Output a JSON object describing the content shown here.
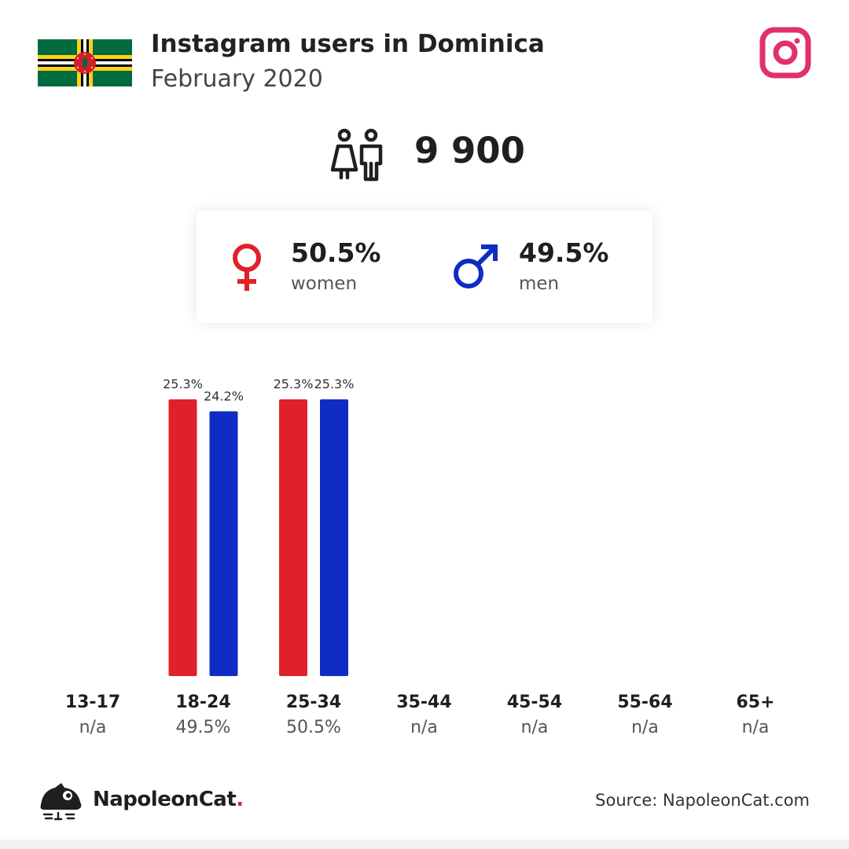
{
  "header": {
    "title": "Instagram users in Dominica",
    "subtitle": "February 2020"
  },
  "icons": {
    "flag": "dominica-flag-icon",
    "platform": "instagram-icon",
    "users": "users-icon",
    "female": "female-symbol-icon",
    "male": "male-symbol-icon",
    "brand": "napoleoncat-logo-icon"
  },
  "total": {
    "value": "9 900"
  },
  "gender": {
    "women": {
      "pct": "50.5%",
      "label": "women",
      "color": "#e0202a"
    },
    "men": {
      "pct": "49.5%",
      "label": "men",
      "color": "#0f2cc4"
    }
  },
  "chart_data": {
    "type": "bar",
    "categories": [
      "13-17",
      "18-24",
      "25-34",
      "35-44",
      "45-54",
      "55-64",
      "65+"
    ],
    "category_totals": [
      "n/a",
      "49.5%",
      "50.5%",
      "n/a",
      "n/a",
      "n/a",
      "n/a"
    ],
    "series": [
      {
        "color": "#e0202a",
        "values": [
          null,
          25.3,
          25.3,
          null,
          null,
          null,
          null
        ],
        "labels": [
          "",
          "25.3%",
          "25.3%",
          "",
          "",
          "",
          ""
        ]
      },
      {
        "color": "#0f2cc4",
        "values": [
          null,
          24.2,
          25.3,
          null,
          null,
          null,
          null
        ],
        "labels": [
          "",
          "24.2%",
          "25.3%",
          "",
          "",
          "",
          ""
        ]
      }
    ],
    "ylim": [
      0,
      25.3
    ],
    "grid": false
  },
  "footer": {
    "brand_name": "NapoleonCat",
    "brand_dot": ".",
    "source": "Source: NapoleonCat.com"
  }
}
